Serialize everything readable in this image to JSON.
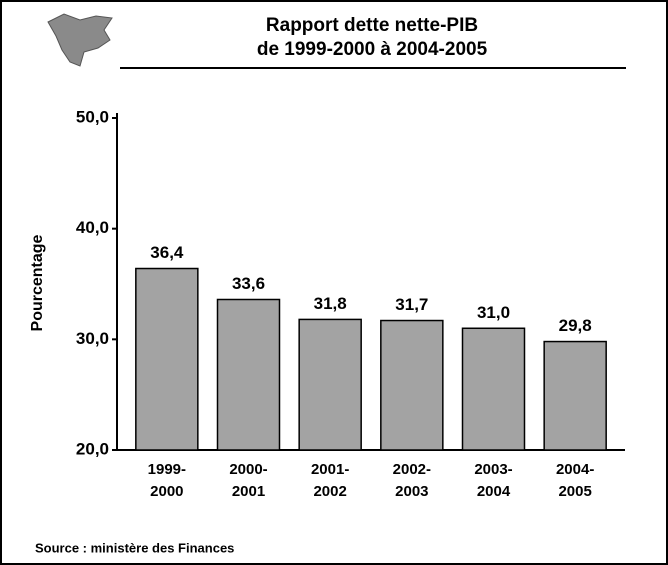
{
  "chart_data": {
    "type": "bar",
    "title": [
      "Rapport dette nette-PIB",
      "de 1999-2000 à 2004-2005"
    ],
    "y_label": "Pourcentage",
    "source": "Source : ministère des Finances",
    "categories": [
      "1999-2000",
      "2000-2001",
      "2001-2002",
      "2002-2003",
      "2003-2004",
      "2004-2005"
    ],
    "values": [
      36.4,
      33.6,
      31.8,
      31.7,
      31.0,
      29.8
    ],
    "value_labels": [
      "36,4",
      "33,6",
      "31,8",
      "31,7",
      "31,0",
      "29,8"
    ],
    "color": "#a3a3a3",
    "ylim": [
      20,
      50
    ],
    "yticks": [
      {
        "value": 20,
        "label": "20,0"
      },
      {
        "value": 30,
        "label": "30,0"
      },
      {
        "value": 40,
        "label": "40,0"
      },
      {
        "value": 50,
        "label": "50,0"
      }
    ],
    "grid": false
  }
}
